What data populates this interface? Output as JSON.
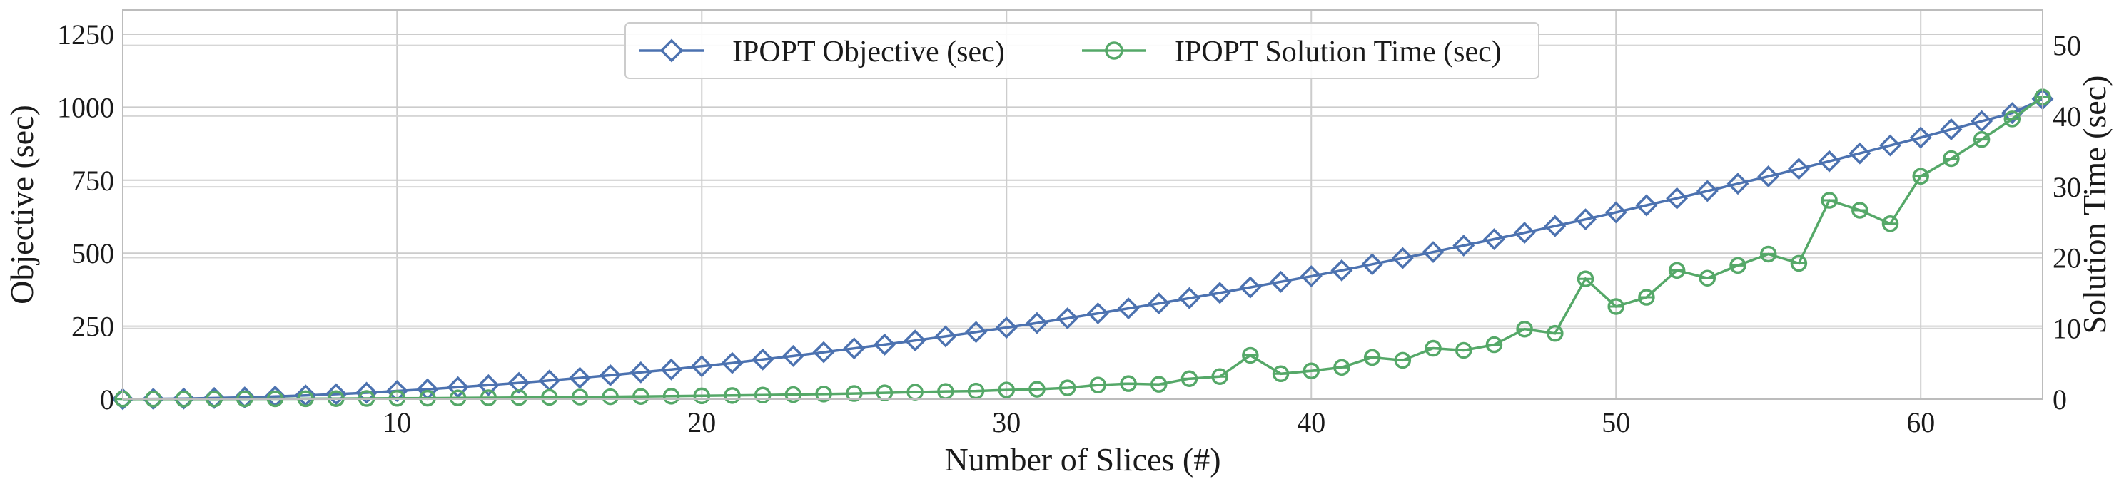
{
  "chart_data": {
    "type": "line",
    "title": "",
    "xlabel": "Number of Slices (#)",
    "ylabel_left": "Objective (sec)",
    "ylabel_right": "Solution Time (sec)",
    "xlim": [
      1,
      64
    ],
    "ylim_left": [
      0,
      1333
    ],
    "ylim_right": [
      0,
      55
    ],
    "x_ticks": [
      10,
      20,
      30,
      40,
      50,
      60
    ],
    "y_ticks_left": [
      0,
      250,
      500,
      750,
      1000,
      1250
    ],
    "y_ticks_right": [
      0,
      10,
      20,
      30,
      40,
      50
    ],
    "grid": true,
    "legend_position": "top-center",
    "x": [
      1,
      2,
      3,
      4,
      5,
      6,
      7,
      8,
      9,
      10,
      11,
      12,
      13,
      14,
      15,
      16,
      17,
      18,
      19,
      20,
      21,
      22,
      23,
      24,
      25,
      26,
      27,
      28,
      29,
      30,
      31,
      32,
      33,
      34,
      35,
      36,
      37,
      38,
      39,
      40,
      41,
      42,
      43,
      44,
      45,
      46,
      47,
      48,
      49,
      50,
      51,
      52,
      53,
      54,
      55,
      56,
      57,
      58,
      59,
      60,
      61,
      62,
      63,
      64
    ],
    "series": [
      {
        "name": "IPOPT Objective (sec)",
        "axis": "left",
        "color": "#4c72b0",
        "marker": "diamond",
        "values": [
          0.2,
          1,
          2,
          4,
          6,
          9,
          13,
          17,
          22,
          28,
          34,
          41,
          48,
          56,
          64,
          73,
          82,
          92,
          102,
          113,
          124,
          136,
          148,
          161,
          174,
          187,
          201,
          215,
          230,
          245,
          261,
          277,
          294,
          311,
          328,
          346,
          364,
          383,
          402,
          421,
          441,
          462,
          483,
          504,
          526,
          548,
          570,
          593,
          616,
          640,
          664,
          688,
          713,
          738,
          763,
          789,
          815,
          842,
          869,
          896,
          924,
          952,
          980,
          1028
        ]
      },
      {
        "name": "IPOPT Solution Time (sec)",
        "axis": "right",
        "color": "#55a868",
        "marker": "circle",
        "values": [
          0.02,
          0.02,
          0.02,
          0.03,
          0.04,
          0.05,
          0.06,
          0.08,
          0.1,
          0.12,
          0.14,
          0.17,
          0.2,
          0.23,
          0.26,
          0.3,
          0.34,
          0.38,
          0.42,
          0.47,
          0.52,
          0.58,
          0.65,
          0.72,
          0.8,
          0.9,
          1,
          1.1,
          1.15,
          1.3,
          1.4,
          1.6,
          2,
          2.2,
          2.1,
          2.9,
          3.2,
          6.2,
          3.6,
          4,
          4.5,
          5.9,
          5.5,
          7.2,
          6.9,
          7.7,
          9.9,
          9.3,
          17,
          13.1,
          14.4,
          18.2,
          17.1,
          18.9,
          20.5,
          19.2,
          28.1,
          26.7,
          24.8,
          31.5,
          34,
          36.7,
          39.6,
          42.7
        ]
      }
    ]
  }
}
